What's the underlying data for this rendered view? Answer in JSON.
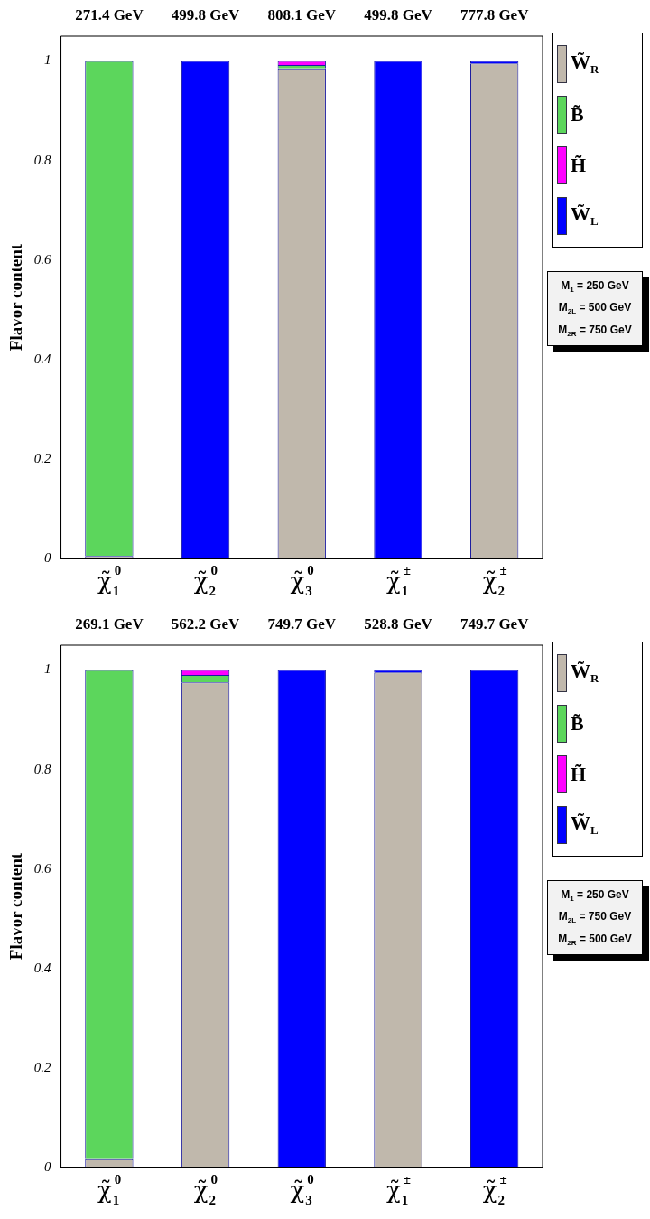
{
  "chart_data": [
    {
      "type": "bar",
      "stacked": true,
      "ylabel": "Flavor content",
      "legend": "right",
      "categories": [
        "χ̃$^{0}$$_{1}$",
        "χ̃$^{0}$$_{2}$",
        "χ̃$^{0}$$_{3}$",
        "χ̃$^{±}$$_{1}$",
        "χ̃$^{±}$$_{2}$"
      ],
      "ylim": [
        0,
        1.05
      ],
      "yticks": [
        0,
        0.2,
        0.4,
        0.6,
        0.8,
        1
      ],
      "series": [
        {
          "name": "W̃$_{R}$",
          "color": "#c0b8ac",
          "values": [
            0.005,
            0,
            0.985,
            0,
            0.995
          ]
        },
        {
          "name": "B̃",
          "color": "#5cd65c",
          "values": [
            0.995,
            0,
            0.007,
            0,
            0
          ]
        },
        {
          "name": "H̃",
          "color": "#ff00ff",
          "values": [
            0,
            0,
            0.008,
            0,
            0
          ]
        },
        {
          "name": "W̃$_{L}$",
          "color": "#0000ff",
          "values": [
            0,
            1,
            0,
            1,
            0.005
          ]
        }
      ],
      "annotations": [
        "271.4 GeV",
        "499.8 GeV",
        "808.1 GeV",
        "499.8 GeV",
        "777.8 GeV",
        "M$_{1}$ = 250 GeV",
        "M$_{2L}$ = 500 GeV",
        "M$_{2R}$ = 750 GeV"
      ]
    },
    {
      "type": "bar",
      "stacked": true,
      "ylabel": "Flavor content",
      "legend": "right",
      "categories": [
        "χ̃$^{0}$$_{1}$",
        "χ̃$^{0}$$_{2}$",
        "χ̃$^{0}$$_{3}$",
        "χ̃$^{±}$$_{1}$",
        "χ̃$^{±}$$_{2}$"
      ],
      "ylim": [
        0,
        1.05
      ],
      "yticks": [
        0,
        0.2,
        0.4,
        0.6,
        0.8,
        1
      ],
      "series": [
        {
          "name": "W̃$_{R}$",
          "color": "#c0b8ac",
          "values": [
            0.017,
            0.975,
            0,
            0.995,
            0
          ]
        },
        {
          "name": "B̃",
          "color": "#5cd65c",
          "values": [
            0.983,
            0.015,
            0,
            0,
            0
          ]
        },
        {
          "name": "H̃",
          "color": "#ff00ff",
          "values": [
            0,
            0.01,
            0,
            0,
            0
          ]
        },
        {
          "name": "W̃$_{L}$",
          "color": "#0000ff",
          "values": [
            0,
            0,
            1,
            0.005,
            1
          ]
        }
      ],
      "annotations": [
        "269.1 GeV",
        "562.2 GeV",
        "749.7 GeV",
        "528.8 GeV",
        "749.7 GeV",
        "M$_{1}$ = 250 GeV",
        "M$_{2L}$ = 750 GeV",
        "M$_{2R}$ = 500 GeV"
      ]
    }
  ]
}
